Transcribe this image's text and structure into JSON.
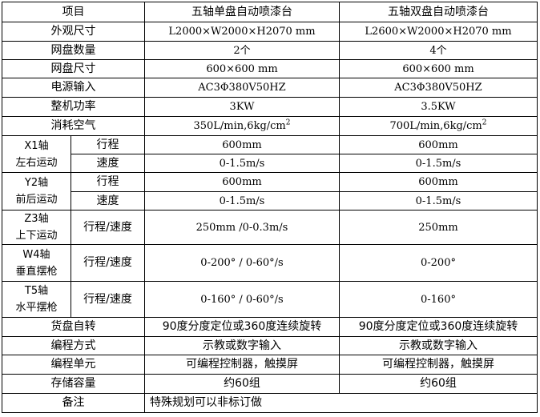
{
  "header": {
    "item": "项目",
    "model_a": "五轴单盘自动喷漆台",
    "model_b": "五轴双盘自动喷漆台"
  },
  "rows": [
    {
      "label": "外观尺寸",
      "a": "L2000×W2000×H2070 mm",
      "b": "L2600×W2000×H2070 mm"
    },
    {
      "label": "网盘数量",
      "a": "2个",
      "b": "4个"
    },
    {
      "label": "网盘尺寸",
      "a": "600×600 mm",
      "b": "600×600 mm"
    },
    {
      "label": "电源输入",
      "a": "AC3Φ380V50HZ",
      "b": "AC3Φ380V50HZ"
    },
    {
      "label": "整机功率",
      "a": "3KW",
      "b": "3.5KW"
    },
    {
      "label": "消耗空气",
      "a": "350L/min,6kg/cm",
      "b": "700L/min,6kg/cm",
      "sup": "2"
    }
  ],
  "axes": [
    {
      "name": "X1轴",
      "motion": "左右运动",
      "sub": [
        {
          "label": "行程",
          "a": "600mm",
          "b": "600mm"
        },
        {
          "label": "速度",
          "a": "0-1.5m/s",
          "b": "0-1.5m/s"
        }
      ]
    },
    {
      "name": "Y2轴",
      "motion": "前后运动",
      "sub": [
        {
          "label": "行程",
          "a": "600mm",
          "b": "600mm"
        },
        {
          "label": "速度",
          "a": "0-1.5m/s",
          "b": "0-1.5m/s"
        }
      ]
    },
    {
      "name": "Z3轴",
      "motion": "上下运动",
      "sub": [
        {
          "label": "行程/速度",
          "a": "250mm /0-0.3m/s",
          "b": "250mm"
        }
      ]
    },
    {
      "name": "W4轴",
      "motion": "垂直摆枪",
      "sub": [
        {
          "label": "行程/速度",
          "a": "0-200° / 0-60°/s",
          "b": "0-200°"
        }
      ]
    },
    {
      "name": "T5轴",
      "motion": "水平摆枪",
      "sub": [
        {
          "label": "行程/速度",
          "a": "0-160° / 0-60°/s",
          "b": "0-160°"
        }
      ]
    }
  ],
  "rows2": [
    {
      "label": "货盘自转",
      "a": "90度分度定位或360度连续旋转",
      "b": "90度分度定位或360度连续旋转"
    },
    {
      "label": "编程方式",
      "a": "示教或数字输入",
      "b": "示教或数字输入"
    },
    {
      "label": "编程单元",
      "a": "可编程控制器，触摸屏",
      "b": "可编程控制器，触摸屏"
    },
    {
      "label": "存储容量",
      "a": "约60组",
      "b": "约60组"
    }
  ],
  "remarks": {
    "label": "备注",
    "value": "特殊规划可以非标订做"
  }
}
